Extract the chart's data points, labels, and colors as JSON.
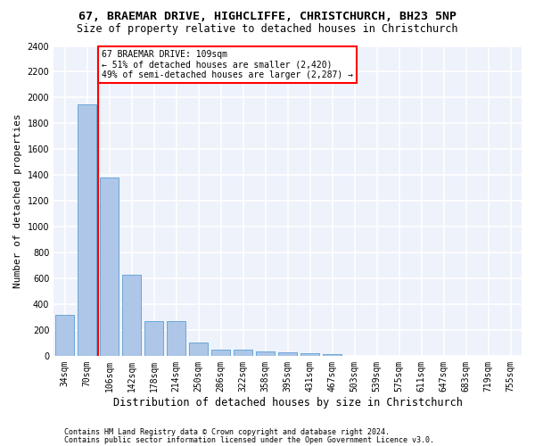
{
  "title1": "67, BRAEMAR DRIVE, HIGHCLIFFE, CHRISTCHURCH, BH23 5NP",
  "title2": "Size of property relative to detached houses in Christchurch",
  "xlabel": "Distribution of detached houses by size in Christchurch",
  "ylabel": "Number of detached properties",
  "bar_color": "#aec6e8",
  "bar_edge_color": "#5a9fd4",
  "categories": [
    "34sqm",
    "70sqm",
    "106sqm",
    "142sqm",
    "178sqm",
    "214sqm",
    "250sqm",
    "286sqm",
    "322sqm",
    "358sqm",
    "395sqm",
    "431sqm",
    "467sqm",
    "503sqm",
    "539sqm",
    "575sqm",
    "611sqm",
    "647sqm",
    "683sqm",
    "719sqm",
    "755sqm"
  ],
  "values": [
    315,
    1950,
    1380,
    630,
    270,
    270,
    100,
    50,
    45,
    30,
    25,
    20,
    15,
    0,
    0,
    0,
    0,
    0,
    0,
    0,
    0
  ],
  "ylim": [
    0,
    2400
  ],
  "yticks": [
    0,
    200,
    400,
    600,
    800,
    1000,
    1200,
    1400,
    1600,
    1800,
    2000,
    2200,
    2400
  ],
  "annotation_text": "67 BRAEMAR DRIVE: 109sqm\n← 51% of detached houses are smaller (2,420)\n49% of semi-detached houses are larger (2,287) →",
  "annotation_box_color": "white",
  "annotation_border_color": "red",
  "vline_color": "red",
  "footer1": "Contains HM Land Registry data © Crown copyright and database right 2024.",
  "footer2": "Contains public sector information licensed under the Open Government Licence v3.0.",
  "bg_color": "#eef2fb",
  "grid_color": "white",
  "title1_fontsize": 9.5,
  "title2_fontsize": 8.5,
  "xlabel_fontsize": 8.5,
  "ylabel_fontsize": 8,
  "tick_fontsize": 7,
  "footer_fontsize": 6,
  "ann_fontsize": 7
}
